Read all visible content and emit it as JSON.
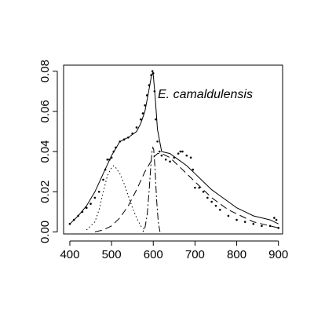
{
  "chart_data": {
    "type": "scatter",
    "title": "",
    "xlabel": "",
    "ylabel": "",
    "annotation": "E. camaldulensis",
    "xlim": [
      385,
      910
    ],
    "ylim": [
      -0.001,
      0.083
    ],
    "x_ticks": [
      400,
      500,
      600,
      700,
      800,
      900
    ],
    "x_tick_labels": [
      "400",
      "500",
      "600",
      "700",
      "800",
      "900"
    ],
    "y_ticks": [
      0.0,
      0.02,
      0.04,
      0.06,
      0.08
    ],
    "y_tick_labels": [
      "0.00",
      "0.02",
      "0.04",
      "0.06",
      "0.08"
    ],
    "grid": false,
    "legend": "none",
    "series": [
      {
        "style": "points",
        "x": [
          400,
          410,
          420,
          430,
          440,
          450,
          460,
          470,
          480,
          485,
          490,
          495,
          500,
          505,
          510,
          520,
          530,
          540,
          550,
          560,
          570,
          575,
          580,
          585,
          590,
          595,
          598,
          600,
          603,
          606,
          610,
          615,
          620,
          630,
          640,
          650,
          660,
          665,
          670,
          680,
          690,
          695,
          700,
          710,
          720,
          730,
          740,
          750,
          760,
          780,
          800,
          820,
          840,
          860,
          880,
          890,
          895,
          900
        ],
        "y": [
          0.004,
          0.006,
          0.008,
          0.01,
          0.012,
          0.014,
          0.017,
          0.02,
          0.026,
          0.031,
          0.036,
          0.036,
          0.037,
          0.04,
          0.042,
          0.045,
          0.046,
          0.047,
          0.049,
          0.052,
          0.056,
          0.059,
          0.063,
          0.068,
          0.073,
          0.078,
          0.08,
          0.079,
          0.07,
          0.056,
          0.045,
          0.04,
          0.038,
          0.036,
          0.035,
          0.037,
          0.039,
          0.04,
          0.04,
          0.038,
          0.037,
          0.031,
          0.022,
          0.022,
          0.02,
          0.017,
          0.015,
          0.013,
          0.011,
          0.008,
          0.006,
          0.005,
          0.004,
          0.003,
          0.003,
          0.007,
          0.006,
          0.002
        ]
      },
      {
        "style": "solid",
        "x": [
          400,
          420,
          440,
          460,
          480,
          500,
          520,
          540,
          560,
          570,
          580,
          590,
          595,
          598,
          600,
          605,
          610,
          620,
          640,
          660,
          680,
          700,
          720,
          740,
          760,
          780,
          800,
          820,
          840,
          860,
          880,
          900
        ],
        "y": [
          0.004,
          0.008,
          0.013,
          0.02,
          0.029,
          0.038,
          0.045,
          0.047,
          0.05,
          0.054,
          0.06,
          0.071,
          0.077,
          0.079,
          0.078,
          0.066,
          0.051,
          0.04,
          0.039,
          0.036,
          0.033,
          0.029,
          0.025,
          0.021,
          0.018,
          0.015,
          0.012,
          0.01,
          0.008,
          0.007,
          0.006,
          0.004
        ]
      },
      {
        "style": "dotted",
        "x": [
          440,
          460,
          470,
          480,
          490,
          500,
          505,
          510,
          520,
          530,
          540,
          550,
          560,
          570,
          580
        ],
        "y": [
          0.001,
          0.005,
          0.011,
          0.02,
          0.028,
          0.032,
          0.033,
          0.032,
          0.029,
          0.024,
          0.018,
          0.012,
          0.007,
          0.003,
          0.001
        ]
      },
      {
        "style": "dashed",
        "x": [
          460,
          480,
          500,
          520,
          540,
          560,
          580,
          600,
          610,
          620,
          640,
          660,
          680,
          700,
          720,
          740,
          760,
          780,
          800,
          820,
          840,
          860,
          880,
          900
        ],
        "y": [
          0.0,
          0.001,
          0.003,
          0.007,
          0.013,
          0.021,
          0.03,
          0.037,
          0.039,
          0.039,
          0.037,
          0.033,
          0.029,
          0.025,
          0.021,
          0.017,
          0.014,
          0.011,
          0.009,
          0.007,
          0.005,
          0.004,
          0.003,
          0.002
        ]
      },
      {
        "style": "dotdash",
        "x": [
          575,
          580,
          585,
          590,
          594,
          597,
          599,
          601,
          604,
          608,
          612,
          616
        ],
        "y": [
          0.0,
          0.002,
          0.008,
          0.02,
          0.033,
          0.04,
          0.042,
          0.041,
          0.032,
          0.016,
          0.005,
          0.0
        ]
      }
    ]
  }
}
